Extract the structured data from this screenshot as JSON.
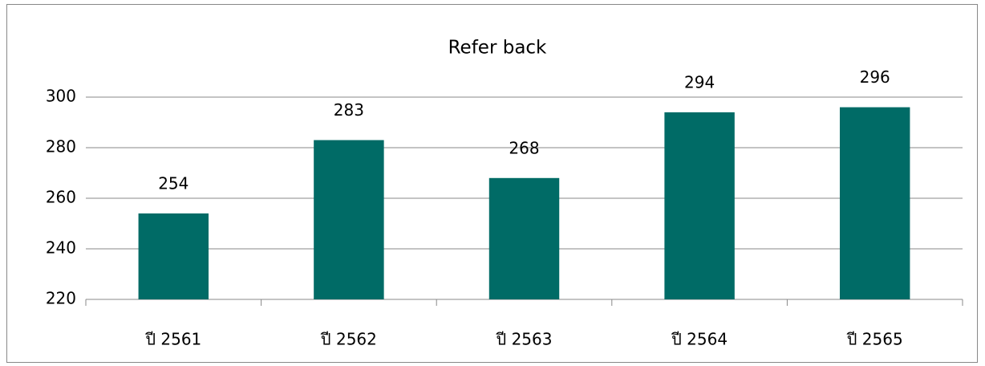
{
  "chart_data": {
    "type": "bar",
    "title": "Refer back",
    "categories": [
      "ปี 2561",
      "ปี 2562",
      "ปี 2563",
      "ปี 2564",
      "ปี 2565"
    ],
    "values": [
      254,
      283,
      268,
      294,
      296
    ],
    "color": "#006b66",
    "ylim": [
      220,
      300
    ],
    "yticks": [
      220,
      240,
      260,
      280,
      300
    ],
    "grid": true
  }
}
